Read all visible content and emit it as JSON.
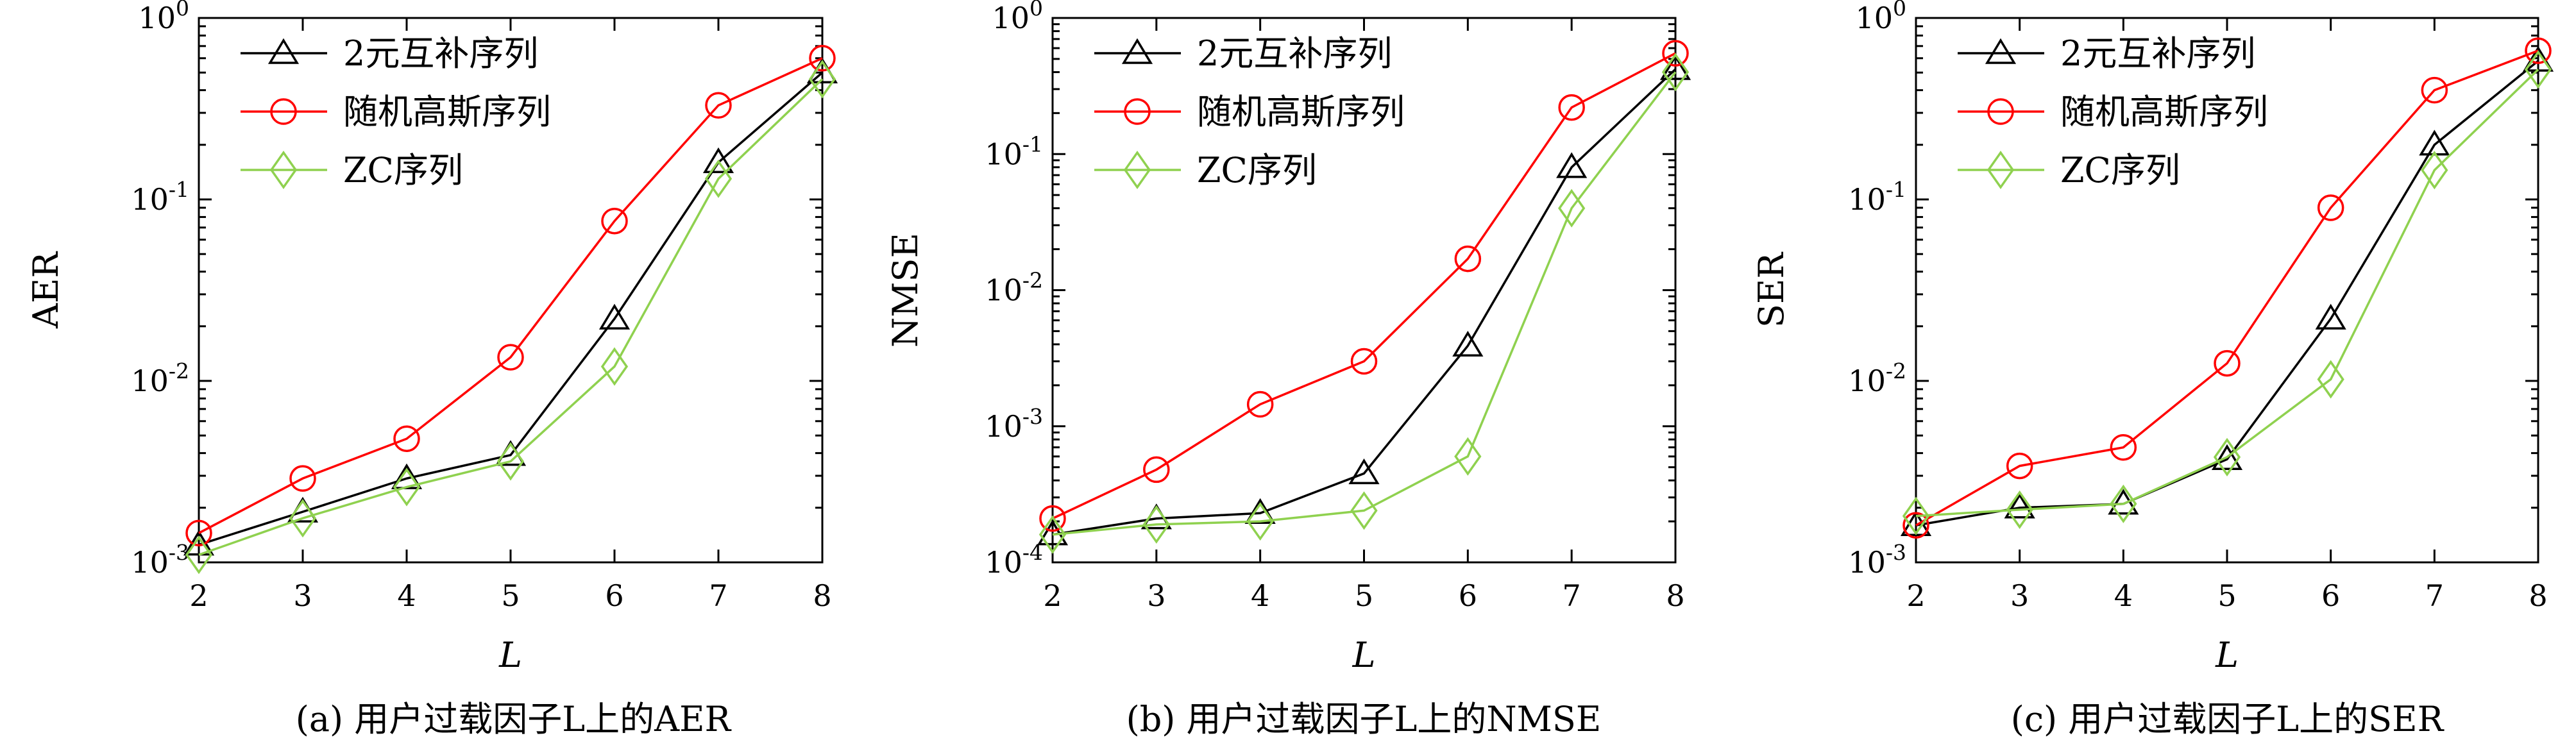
{
  "colors": {
    "black": "#000000",
    "red": "#ff0000",
    "green": "#8fd14f"
  },
  "chart_data": [
    {
      "type": "line",
      "caption": "(a) 用户过载因子L上的AER",
      "xlabel": "L",
      "ylabel": "AER",
      "yscale": "log",
      "x": [
        2,
        3,
        4,
        5,
        6,
        7,
        8
      ],
      "ylim": [
        0.001,
        1
      ],
      "yticks": [
        {
          "base": "10",
          "exp": "-3"
        },
        {
          "base": "10",
          "exp": "-2"
        },
        {
          "base": "10",
          "exp": "-1"
        },
        {
          "base": "10",
          "exp": "0"
        }
      ],
      "legend_position": "top-left",
      "series": [
        {
          "name": "2元互补序列",
          "color": "#000000",
          "marker": "triangle",
          "values": [
            0.00125,
            0.0019,
            0.0029,
            0.0039,
            0.022,
            0.16,
            0.5
          ]
        },
        {
          "name": "随机高斯序列",
          "color": "#ff0000",
          "marker": "circle",
          "values": [
            0.00145,
            0.0029,
            0.0048,
            0.0135,
            0.076,
            0.33,
            0.6
          ]
        },
        {
          "name": "ZC序列",
          "color": "#8fd14f",
          "marker": "diamond",
          "values": [
            0.0011,
            0.00175,
            0.0026,
            0.0036,
            0.012,
            0.13,
            0.46
          ]
        }
      ]
    },
    {
      "type": "line",
      "caption": "(b) 用户过载因子L上的NMSE",
      "xlabel": "L",
      "ylabel": "NMSE",
      "yscale": "log",
      "x": [
        2,
        3,
        4,
        5,
        6,
        7,
        8
      ],
      "ylim": [
        0.0001,
        1
      ],
      "yticks": [
        {
          "base": "10",
          "exp": "-4"
        },
        {
          "base": "10",
          "exp": "-3"
        },
        {
          "base": "10",
          "exp": "-2"
        },
        {
          "base": "10",
          "exp": "-1"
        },
        {
          "base": "10",
          "exp": "0"
        }
      ],
      "legend_position": "top-left",
      "series": [
        {
          "name": "2元互补序列",
          "color": "#000000",
          "marker": "triangle",
          "values": [
            0.00016,
            0.00021,
            0.00023,
            0.00045,
            0.0039,
            0.08,
            0.42
          ]
        },
        {
          "name": "随机高斯序列",
          "color": "#ff0000",
          "marker": "circle",
          "values": [
            0.00021,
            0.00048,
            0.00145,
            0.003,
            0.017,
            0.22,
            0.55
          ]
        },
        {
          "name": "ZC序列",
          "color": "#8fd14f",
          "marker": "diamond",
          "values": [
            0.00016,
            0.00019,
            0.0002,
            0.00024,
            0.0006,
            0.04,
            0.4
          ]
        }
      ]
    },
    {
      "type": "line",
      "caption": "(c) 用户过载因子L上的SER",
      "xlabel": "L",
      "ylabel": "SER",
      "yscale": "log",
      "x": [
        2,
        3,
        4,
        5,
        6,
        7,
        8
      ],
      "ylim": [
        0.001,
        1
      ],
      "yticks": [
        {
          "base": "10",
          "exp": "-3"
        },
        {
          "base": "10",
          "exp": "-2"
        },
        {
          "base": "10",
          "exp": "-1"
        },
        {
          "base": "10",
          "exp": "0"
        }
      ],
      "legend_position": "top-left",
      "series": [
        {
          "name": "2元互补序列",
          "color": "#000000",
          "marker": "triangle",
          "values": [
            0.0016,
            0.002,
            0.0021,
            0.0037,
            0.022,
            0.2,
            0.58
          ]
        },
        {
          "name": "随机高斯序列",
          "color": "#ff0000",
          "marker": "circle",
          "values": [
            0.0016,
            0.0034,
            0.0043,
            0.0125,
            0.09,
            0.4,
            0.66
          ]
        },
        {
          "name": "ZC序列",
          "color": "#8fd14f",
          "marker": "diamond",
          "values": [
            0.0018,
            0.00195,
            0.0021,
            0.0038,
            0.0102,
            0.145,
            0.52
          ]
        }
      ]
    }
  ]
}
